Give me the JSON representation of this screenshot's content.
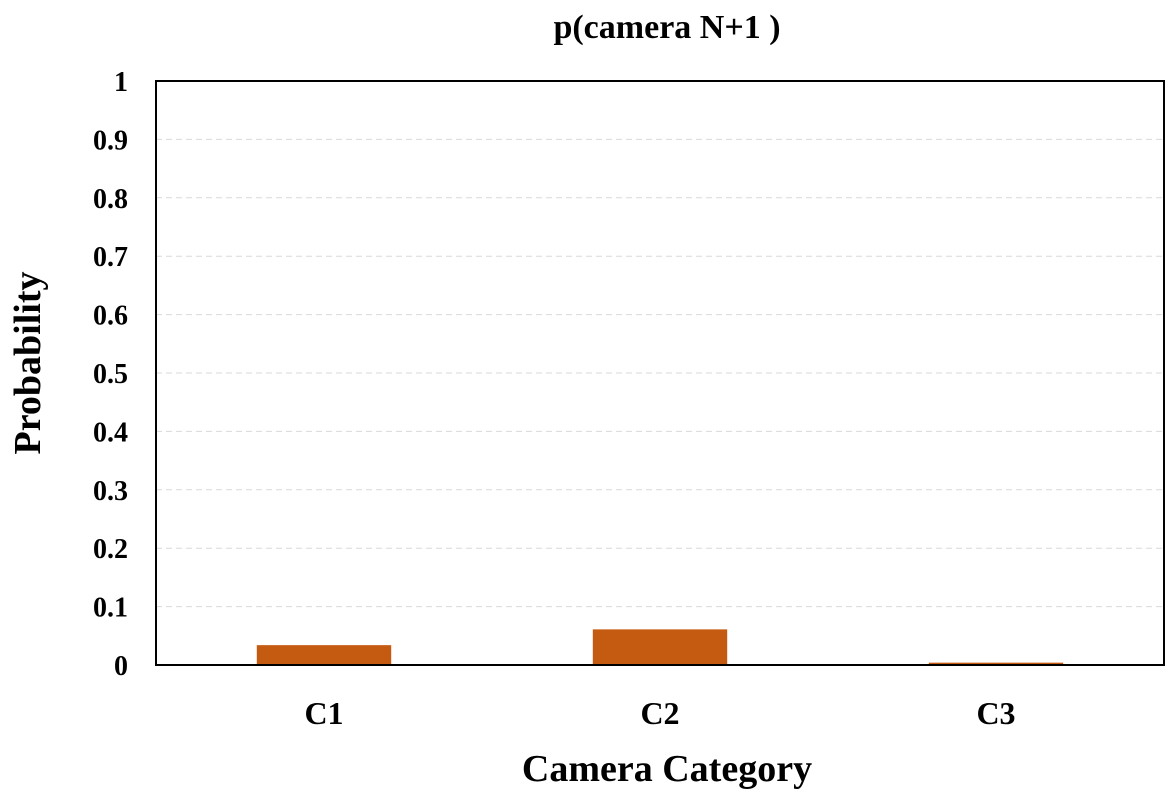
{
  "chart_data": {
    "type": "bar",
    "title": "p(camera N+1 )",
    "xlabel": "Camera Category",
    "ylabel": "Probability",
    "categories": [
      "C1",
      "C2",
      "C3"
    ],
    "values": [
      0.034,
      0.061,
      0.004
    ],
    "ylim": [
      0,
      1
    ],
    "yticks": [
      0,
      0.1,
      0.2,
      0.3,
      0.4,
      0.5,
      0.6,
      0.7,
      0.8,
      0.9,
      1
    ],
    "ytick_labels": [
      "0",
      "0.1",
      "0.2",
      "0.3",
      "0.4",
      "0.5",
      "0.6",
      "0.7",
      "0.8",
      "0.9",
      "1"
    ],
    "grid": true,
    "legend": "none",
    "bar_color": "#C55A11",
    "grid_color": "#D9D9D9"
  }
}
